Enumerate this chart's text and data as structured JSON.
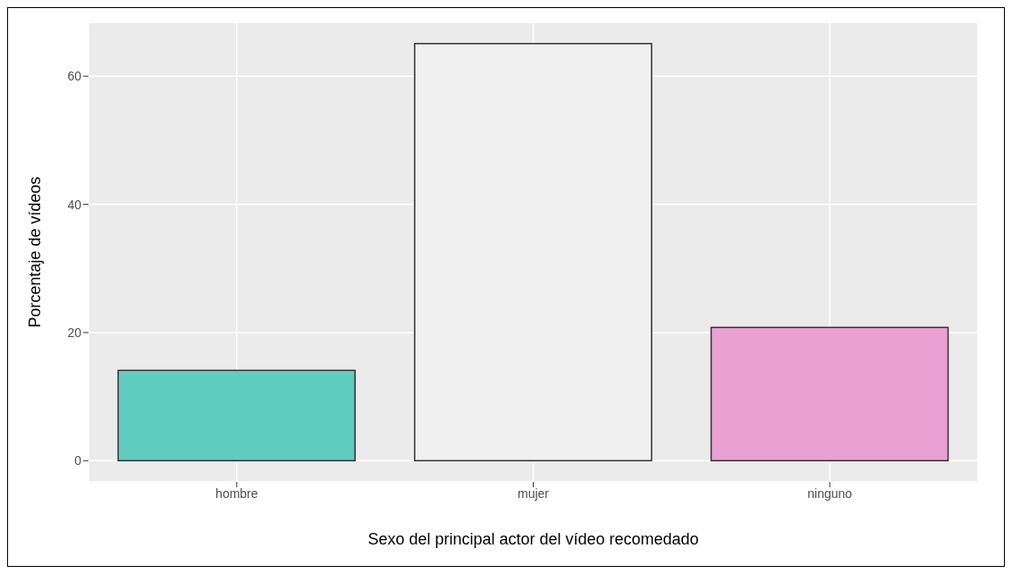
{
  "chart_data": {
    "type": "bar",
    "xlabel": "Sexo del principal actor del vídeo recomedado",
    "ylabel": "Porcentaje de vídeos",
    "categories": [
      "hombre",
      "mujer",
      "ninguno"
    ],
    "values": [
      14.1,
      65.1,
      20.8
    ],
    "colors": [
      "#5fcdc0",
      "#f0f0f0",
      "#eaa0d2"
    ],
    "ylim": [
      -3.3,
      68.4
    ],
    "yticks": [
      0,
      20,
      40,
      60
    ],
    "grid": true
  }
}
